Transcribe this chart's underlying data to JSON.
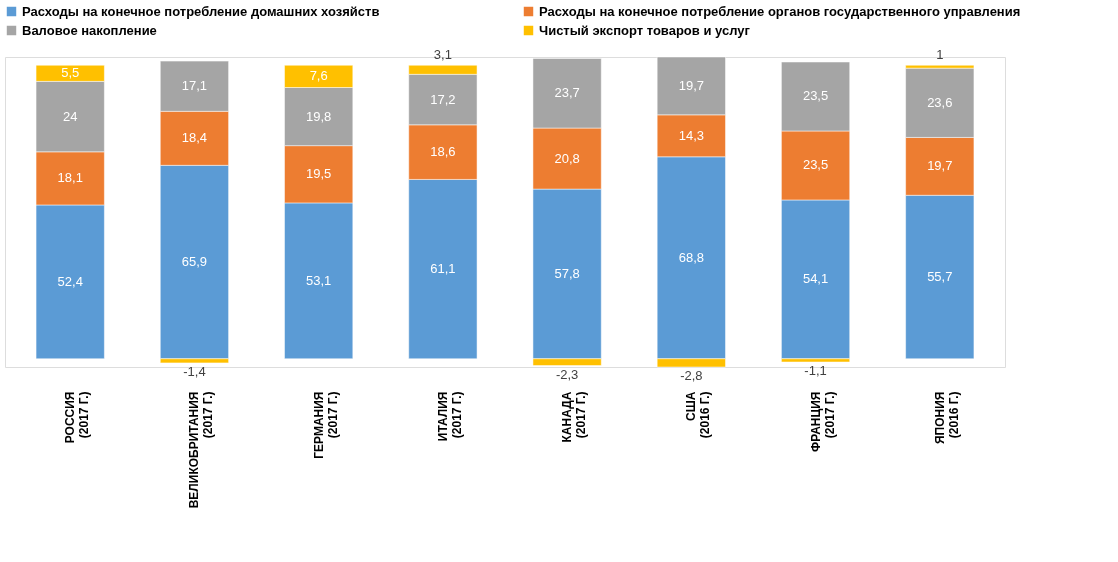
{
  "chart_data": {
    "type": "bar",
    "stacked": true,
    "legend": "top",
    "grid": false,
    "tick_labels": "x",
    "categories": [
      "РОССИЯ\n(2017 Г.)",
      "ВЕЛИКОБРИТАНИЯ\n(2017 Г.)",
      "ГЕРМАНИЯ\n(2017 Г.)",
      "ИТАЛИЯ\n(2017 Г.)",
      "КАНАДА\n(2017 Г.)",
      "США\n(2016 Г.)",
      "ФРАНЦИЯ\n(2017 Г.)",
      "ЯПОНИЯ\n(2016 Г.)"
    ],
    "series": [
      {
        "name": "Расходы на конечное потребление домашних хозяйств",
        "color": "#5b9bd5",
        "values": [
          52.4,
          65.9,
          53.1,
          61.1,
          57.8,
          68.8,
          54.1,
          55.7
        ],
        "value_labels": [
          "52,4",
          "65,9",
          "53,1",
          "61,1",
          "57,8",
          "68,8",
          "54,1",
          "55,7"
        ]
      },
      {
        "name": "Расходы на конечное потребление органов государственного управления",
        "color": "#ed7d31",
        "values": [
          18.1,
          18.4,
          19.5,
          18.6,
          20.8,
          14.3,
          23.5,
          19.7
        ],
        "value_labels": [
          "18,1",
          "18,4",
          "19,5",
          "18,6",
          "20,8",
          "14,3",
          "23,5",
          "19,7"
        ]
      },
      {
        "name": "Валовое накопление",
        "color": "#a5a5a5",
        "values": [
          24,
          17.1,
          19.8,
          17.2,
          23.7,
          19.7,
          23.5,
          23.6
        ],
        "value_labels": [
          "24",
          "17,1",
          "19,8",
          "17,2",
          "23,7",
          "19,7",
          "23,5",
          "23,6"
        ]
      },
      {
        "name": "Чистый экспорт товаров и услуг",
        "color": "#ffc000",
        "values": [
          5.5,
          -1.4,
          7.6,
          3.1,
          -2.3,
          -2.8,
          -1.1,
          1
        ],
        "value_labels": [
          "5,5",
          "-1,4",
          "7,6",
          "3,1",
          "-2,3",
          "-2,8",
          "-1,1",
          "1"
        ]
      }
    ]
  }
}
